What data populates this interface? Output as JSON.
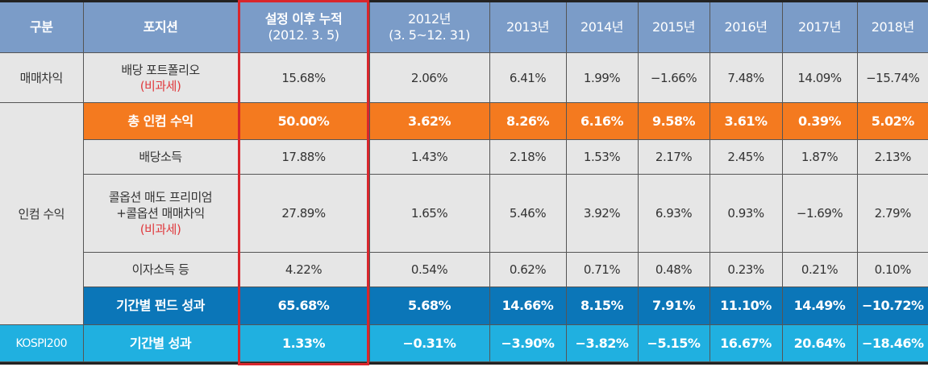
{
  "headers": [
    "구분",
    "포지션",
    "설정 이후 누적\n(2012. 3. 5)",
    "2012년\n(3. 5~12. 31)",
    "2013년",
    "2014년",
    "2015년",
    "2016년",
    "2017년",
    "2018년"
  ],
  "header_lines": {
    "cumulative": [
      "설정 이후 누적",
      "(2012. 3. 5)"
    ],
    "y2012": [
      "2012년",
      "(3. 5~12. 31)"
    ]
  },
  "categories": {
    "trading": "매매차익",
    "income": "인컴 수익",
    "kospi": "KOSPI200"
  },
  "tax_free_note": "(비과세)",
  "rows": [
    {
      "position": "배당 포트폴리오",
      "values": [
        "15.68%",
        "2.06%",
        "6.41%",
        "1.99%",
        "−1.66%",
        "7.48%",
        "14.09%",
        "−15.74%"
      ]
    },
    {
      "position": "총 인컴 수익",
      "values": [
        "50.00%",
        "3.62%",
        "8.26%",
        "6.16%",
        "9.58%",
        "3.61%",
        "0.39%",
        "5.02%"
      ]
    },
    {
      "position": "배당소득",
      "values": [
        "17.88%",
        "1.43%",
        "2.18%",
        "1.53%",
        "2.17%",
        "2.45%",
        "1.87%",
        "2.13%"
      ]
    },
    {
      "position_lines": [
        "콜옵션 매도 프리미엄",
        "+콜옵션 매매차익"
      ],
      "values": [
        "27.89%",
        "1.65%",
        "5.46%",
        "3.92%",
        "6.93%",
        "0.93%",
        "−1.69%",
        "2.79%"
      ]
    },
    {
      "position": "이자소득 등",
      "values": [
        "4.22%",
        "0.54%",
        "0.62%",
        "0.71%",
        "0.48%",
        "0.23%",
        "0.21%",
        "0.10%"
      ]
    },
    {
      "position": "기간별 펀드 성과",
      "values": [
        "65.68%",
        "5.68%",
        "14.66%",
        "8.15%",
        "7.91%",
        "11.10%",
        "14.49%",
        "−10.72%"
      ]
    },
    {
      "position": "기간별 성과",
      "values": [
        "1.33%",
        "−0.31%",
        "−3.90%",
        "−3.82%",
        "−5.15%",
        "16.67%",
        "20.64%",
        "−18.46%"
      ]
    }
  ],
  "colors": {
    "header": "#7b9cc8",
    "body": "#e6e6e6",
    "total_income": "#f47a1f",
    "fund_performance": "#0b76b8",
    "kospi": "#20b0e0",
    "highlight_box": "#d9262c",
    "tax_free_text": "#e03a3e"
  }
}
